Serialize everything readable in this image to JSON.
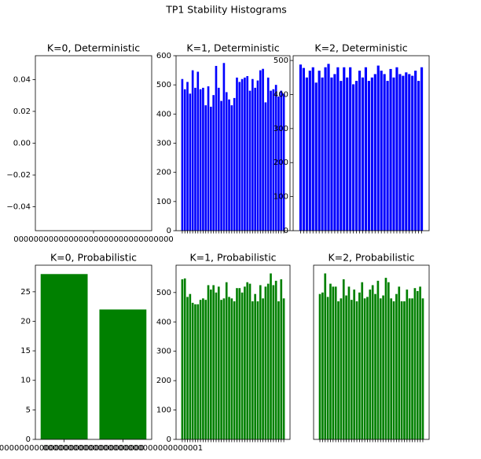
{
  "title": "TP1 Stability Histograms",
  "chart_data": [
    {
      "type": "bar",
      "title": "K=0, Deterministic",
      "color": "#0000ff",
      "categories": [
        "00000000000000000000000000000000"
      ],
      "values": [
        0
      ],
      "ylim": [
        -0.055,
        0.055
      ],
      "yticks": [
        {
          "value": -0.04,
          "label": "−0.04"
        },
        {
          "value": -0.02,
          "label": "−0.02"
        },
        {
          "value": 0,
          "label": "0.00"
        },
        0.02,
        0.04
      ]
    },
    {
      "type": "bar",
      "title": "K=1, Deterministic",
      "color": "#0000ff",
      "categories": [
        null,
        null,
        null,
        null,
        null,
        null,
        null,
        null,
        null,
        null,
        null,
        null,
        null,
        null,
        null,
        null,
        null,
        null,
        null,
        null,
        null,
        null,
        null,
        null,
        null,
        null,
        null,
        null,
        null,
        null,
        null,
        null,
        null,
        null,
        null,
        null,
        null,
        null,
        null,
        null
      ],
      "values": [
        520,
        485,
        510,
        470,
        550,
        490,
        545,
        485,
        490,
        430,
        495,
        425,
        465,
        565,
        490,
        445,
        575,
        475,
        450,
        430,
        455,
        525,
        510,
        520,
        525,
        530,
        480,
        520,
        490,
        515,
        550,
        555,
        440,
        525,
        480,
        485,
        500,
        460,
        480,
        470
      ],
      "ylim": [
        0,
        600
      ],
      "yticks": [
        0,
        100,
        200,
        300,
        400,
        500,
        600
      ]
    },
    {
      "type": "bar",
      "title": "K=2, Deterministic",
      "color": "#0000ff",
      "categories": [
        null,
        null,
        null,
        null,
        null,
        null,
        null,
        null,
        null,
        null,
        null,
        null,
        null,
        null,
        null,
        null,
        null,
        null,
        null,
        null,
        null,
        null,
        null,
        null,
        null,
        null,
        null,
        null,
        null,
        null,
        null,
        null,
        null,
        null,
        null,
        null,
        null,
        null,
        null,
        null
      ],
      "values": [
        488,
        478,
        450,
        470,
        480,
        435,
        470,
        450,
        480,
        490,
        450,
        460,
        480,
        440,
        480,
        450,
        480,
        430,
        440,
        470,
        450,
        480,
        440,
        450,
        460,
        485,
        470,
        460,
        440,
        475,
        450,
        480,
        460,
        455,
        465,
        460,
        455,
        470,
        440,
        480
      ],
      "ylim": [
        0,
        514
      ],
      "yticks": [
        0,
        100,
        200,
        300,
        400,
        500
      ]
    },
    {
      "type": "bar",
      "title": "K=0, Probabilistic",
      "color": "#008000",
      "categories": [
        "00000000000000000000000000000000",
        "00000000000000000000000000000001"
      ],
      "values": [
        28,
        22
      ],
      "ylim": [
        0,
        29.5
      ],
      "yticks": [
        0,
        5,
        10,
        15,
        20,
        25
      ]
    },
    {
      "type": "bar",
      "title": "K=1, Probabilistic",
      "color": "#008000",
      "categories": [
        null,
        null,
        null,
        null,
        null,
        null,
        null,
        null,
        null,
        null,
        null,
        null,
        null,
        null,
        null,
        null,
        null,
        null,
        null,
        null,
        null,
        null,
        null,
        null,
        null,
        null,
        null,
        null,
        null,
        null,
        null,
        null,
        null,
        null,
        null,
        null,
        null,
        null,
        null,
        null
      ],
      "values": [
        545,
        548,
        485,
        495,
        465,
        460,
        460,
        475,
        480,
        475,
        525,
        510,
        525,
        500,
        520,
        475,
        480,
        535,
        485,
        480,
        470,
        515,
        515,
        500,
        520,
        535,
        530,
        470,
        495,
        470,
        525,
        480,
        520,
        530,
        565,
        525,
        540,
        470,
        545,
        480
      ],
      "ylim": [
        0,
        593
      ],
      "yticks": [
        0,
        100,
        200,
        300,
        400,
        500
      ]
    },
    {
      "type": "bar",
      "title": "K=2, Probabilistic",
      "color": "#008000",
      "categories": [
        null,
        null,
        null,
        null,
        null,
        null,
        null,
        null,
        null,
        null,
        null,
        null,
        null,
        null,
        null,
        null,
        null,
        null,
        null,
        null,
        null,
        null,
        null,
        null,
        null,
        null,
        null,
        null,
        null,
        null,
        null,
        null,
        null,
        null,
        null,
        null,
        null,
        null,
        null,
        null
      ],
      "values": [
        495,
        500,
        565,
        485,
        530,
        520,
        520,
        470,
        480,
        545,
        490,
        520,
        475,
        510,
        470,
        500,
        535,
        480,
        485,
        510,
        525,
        495,
        540,
        480,
        490,
        550,
        535,
        480,
        470,
        495,
        520,
        470,
        470,
        510,
        480,
        480,
        515,
        505,
        520,
        480
      ],
      "ylim": [
        0,
        593
      ]
    }
  ]
}
